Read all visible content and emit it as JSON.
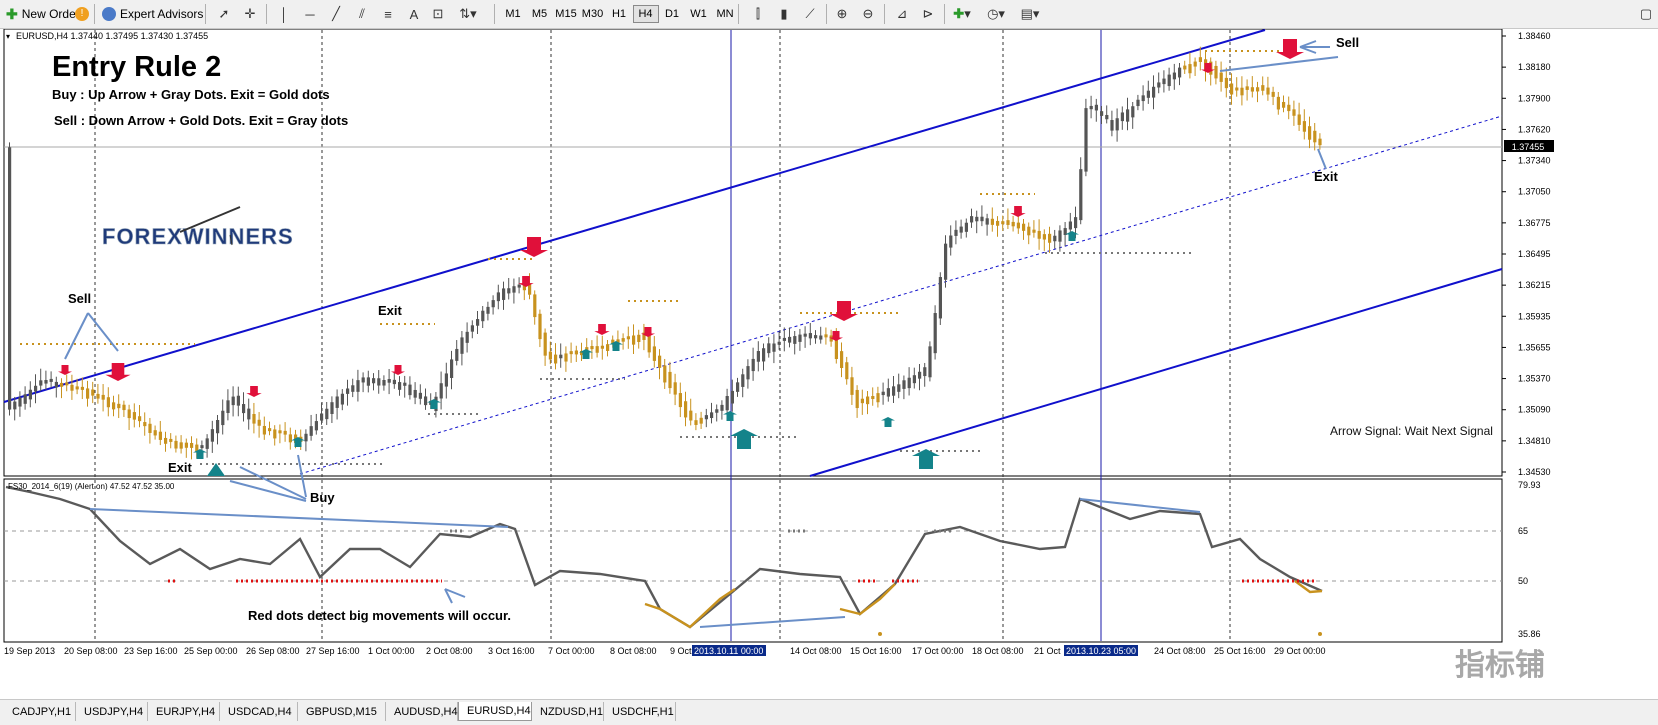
{
  "toolbar": {
    "new_order": "New Order",
    "expert_advisors": "Expert Advisors",
    "timeframes": [
      "M1",
      "M5",
      "M15",
      "M30",
      "H1",
      "H4",
      "D1",
      "W1",
      "MN"
    ],
    "active_timeframe": "H4"
  },
  "main_chart": {
    "header": "EURUSD,H4  1.37440 1.37495 1.37430 1.37455",
    "title": "Entry Rule 2",
    "rule_buy": "Buy : Up Arrow + Gray Dots. Exit = Gold dots",
    "rule_sell": "Sell : Down Arrow + Gold Dots. Exit = Gray dots",
    "logo": "FOREXWINNERS",
    "labels": {
      "sell_left": "Sell",
      "exit_mid": "Exit",
      "exit_left": "Exit",
      "sell_right": "Sell",
      "exit_right": "Exit",
      "arrow_signal": "Arrow Signal: Wait Next Signal"
    },
    "price_ticks": [
      "1.38460",
      "1.38180",
      "1.37900",
      "1.37620",
      "1.37340",
      "1.37050",
      "1.36775",
      "1.36495",
      "1.36215",
      "1.35935",
      "1.35655",
      "1.35370",
      "1.35090",
      "1.34810",
      "1.34530"
    ],
    "current_price": "1.37455"
  },
  "indicator": {
    "header": "FS30_2014_6(19) (Alert on) 47.52 47.52 35.00",
    "levels": [
      "79.93",
      "65",
      "50",
      "35.86"
    ],
    "label_buy": "Buy",
    "label_red_dots": "Red dots detect big movements will occur."
  },
  "time_axis": {
    "ticks": [
      "19 Sep 2013",
      "20 Sep 08:00",
      "23 Sep 16:00",
      "25 Sep 00:00",
      "26 Sep 08:00",
      "27 Sep 16:00",
      "1 Oct 00:00",
      "2 Oct 08:00",
      "3 Oct 16:00",
      "7 Oct 00:00",
      "8 Oct 08:00",
      "9 Oct",
      "14 Oct 08:00",
      "15 Oct 16:00",
      "17 Oct 00:00",
      "18 Oct 08:00",
      "21 Oct",
      "24 Oct 08:00",
      "25 Oct 16:00",
      "29 Oct 00:00"
    ],
    "highlight_1": "2013.10.11 00:00",
    "highlight_2": "2013.10.23 05:00"
  },
  "tabs": [
    "CADJPY,H1",
    "USDJPY,H4",
    "EURJPY,H4",
    "USDCAD,H4",
    "GBPUSD,M15",
    "AUDUSD,H4",
    "EURUSD,H4",
    "NZDUSD,H1",
    "USDCHF,H1"
  ],
  "active_tab": "EURUSD,H4",
  "watermark": "指标铺",
  "colors": {
    "gray_candle": "#555555",
    "gold_candle": "#c8921e",
    "channel": "#0000cc",
    "sell_arrow": "#e0103a",
    "buy_arrow": "#14838a"
  }
}
